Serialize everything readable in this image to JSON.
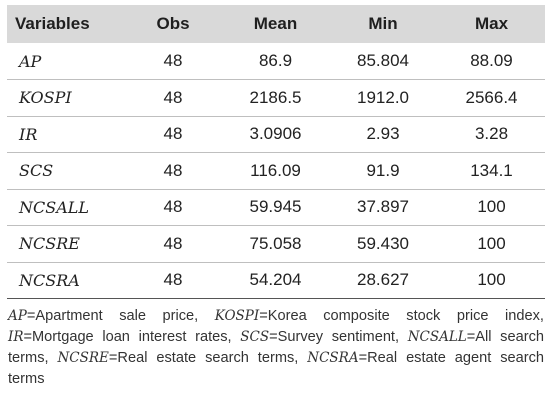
{
  "table": {
    "headers": [
      "Variables",
      "Obs",
      "Mean",
      "Min",
      "Max"
    ],
    "rows": [
      {
        "variable": "AP",
        "obs": "48",
        "mean": "86.9",
        "min": "85.804",
        "max": "88.09"
      },
      {
        "variable": "KOSPI",
        "obs": "48",
        "mean": "2186.5",
        "min": "1912.0",
        "max": "2566.4"
      },
      {
        "variable": "IR",
        "obs": "48",
        "mean": "3.0906",
        "min": "2.93",
        "max": "3.28"
      },
      {
        "variable": "SCS",
        "obs": "48",
        "mean": "116.09",
        "min": "91.9",
        "max": "134.1"
      },
      {
        "variable": "NCSALL",
        "obs": "48",
        "mean": "59.945",
        "min": "37.897",
        "max": "100"
      },
      {
        "variable": "NCSRE",
        "obs": "48",
        "mean": "75.058",
        "min": "59.430",
        "max": "100"
      },
      {
        "variable": "NCSRA",
        "obs": "48",
        "mean": "54.204",
        "min": "28.627",
        "max": "100"
      }
    ]
  },
  "note": [
    {
      "abbr": "AP",
      "text": "=Apartment sale price, "
    },
    {
      "abbr": "KOSPI",
      "text": "=Korea composite stock price index, "
    },
    {
      "abbr": "IR",
      "text": "=Mortgage loan interest rates, "
    },
    {
      "abbr": "SCS",
      "text": "=Survey sentiment, "
    },
    {
      "abbr": "NCSALL",
      "text": "=All search terms, "
    },
    {
      "abbr": "NCSRE",
      "text": "=Real estate search terms, "
    },
    {
      "abbr": "NCSRA",
      "text": "=Real estate agent search terms"
    }
  ]
}
